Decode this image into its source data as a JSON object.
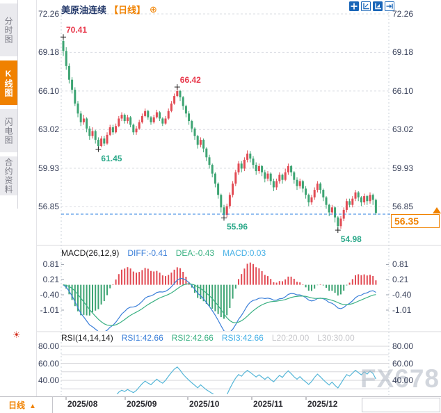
{
  "header": {
    "title": "美原油连续",
    "period_tag": "【日线】",
    "plus_icon": "⊕"
  },
  "sidebar": {
    "tabs": [
      {
        "label": "分时图",
        "active": false
      },
      {
        "label": "K线图",
        "active": true
      },
      {
        "label": "闪电图",
        "active": false
      },
      {
        "label": "合约资料",
        "active": false
      }
    ]
  },
  "toolbar": {
    "icons": [
      "pan-crosshair",
      "axis-zoom",
      "axis-chart-active",
      "exit-arrow"
    ]
  },
  "colors": {
    "up": "#e24b54",
    "down": "#3da473",
    "accent_orange": "#f08200",
    "diff_blue": "#3b7fd9",
    "dea_green": "#3bb183",
    "macd_cyan": "#45b0e6",
    "rsi_cyan": "#55b6d8",
    "price_line_blue": "#2b7fe0"
  },
  "main_chart": {
    "axis_labels": [
      "72.26",
      "69.18",
      "66.10",
      "63.02",
      "59.93",
      "56.85"
    ],
    "annotations": [
      {
        "text": "70.41",
        "kind": "high",
        "candle_index": 0,
        "price": 70.41
      },
      {
        "text": "61.45",
        "kind": "low",
        "candle_index": 12,
        "price": 61.45
      },
      {
        "text": "66.42",
        "kind": "high",
        "candle_index": 39,
        "price": 66.42
      },
      {
        "text": "55.96",
        "kind": "low",
        "candle_index": 55,
        "price": 55.96
      },
      {
        "text": "54.98",
        "kind": "low",
        "candle_index": 94,
        "price": 54.98
      }
    ],
    "current_price": {
      "text": "56.35",
      "price": 56.35
    }
  },
  "macd_panel": {
    "title": "MACD(26,12,9)",
    "diff_label": "DIFF:-0.41",
    "dea_label": "DEA:-0.43",
    "macd_label": "MACD:0.03",
    "axis_labels": [
      "0.81",
      "0.21",
      "-0.40",
      "-1.01"
    ]
  },
  "rsi_panel": {
    "title": "RSI(14,14,14)",
    "rsi1_label": "RSI1:42.66",
    "rsi2_label": "RSI2:42.66",
    "rsi3_label": "RSI3:42.66",
    "l20_label": "L20:20.00",
    "l30_label": "L30:30.00",
    "axis_labels": [
      "80.00",
      "60.00",
      "40.00"
    ],
    "icon_glyph": "☀"
  },
  "timeline": {
    "labels": [
      "2025/08",
      "2025/09",
      "2025/10",
      "2025/11",
      "2025/12"
    ]
  },
  "footer": {
    "period_label": "日线",
    "arrow": "▲"
  },
  "watermark": "FX678",
  "chart_data": {
    "type": "candlestick",
    "symbol": "美原油连续",
    "period": "日线",
    "price_axis_ticks": [
      72.26,
      69.18,
      66.1,
      63.02,
      59.93,
      56.85
    ],
    "x_months": [
      "2025/08",
      "2025/09",
      "2025/10",
      "2025/11",
      "2025/12"
    ],
    "annotated_points": {
      "period_high": 70.41,
      "aug_low": 61.45,
      "oct_high": 66.42,
      "oct_low": 55.96,
      "dec_low": 54.98,
      "last_close": 56.35
    },
    "indicators": {
      "macd": {
        "params": [
          26,
          12,
          9
        ],
        "diff": -0.41,
        "dea": -0.43,
        "macd": 0.03,
        "axis_ticks": [
          0.81,
          0.21,
          -0.4,
          -1.01
        ]
      },
      "rsi": {
        "params": [
          14,
          14,
          14
        ],
        "rsi1": 42.66,
        "rsi2": 42.66,
        "rsi3": 42.66,
        "l20": 20.0,
        "l30": 30.0,
        "axis_ticks": [
          80,
          60,
          40
        ]
      }
    },
    "candles_ohlc": [
      [
        70.1,
        70.41,
        68.9,
        69.3
      ],
      [
        69.3,
        69.6,
        67.8,
        68.1
      ],
      [
        68.1,
        68.3,
        66.7,
        67.0
      ],
      [
        67.0,
        67.2,
        65.9,
        66.2
      ],
      [
        66.2,
        66.4,
        64.9,
        65.1
      ],
      [
        65.1,
        65.3,
        64.0,
        64.3
      ],
      [
        64.3,
        64.5,
        63.3,
        63.6
      ],
      [
        63.6,
        64.2,
        63.4,
        63.9
      ],
      [
        63.9,
        64.0,
        62.8,
        63.1
      ],
      [
        63.1,
        63.3,
        62.2,
        62.5
      ],
      [
        62.5,
        63.2,
        62.3,
        62.9
      ],
      [
        62.9,
        63.0,
        61.9,
        62.2
      ],
      [
        62.2,
        62.4,
        61.45,
        61.7
      ],
      [
        61.7,
        62.5,
        61.6,
        62.3
      ],
      [
        62.3,
        62.5,
        61.7,
        61.9
      ],
      [
        61.9,
        62.8,
        61.8,
        62.6
      ],
      [
        62.6,
        63.4,
        62.5,
        63.2
      ],
      [
        63.2,
        63.4,
        62.6,
        62.8
      ],
      [
        62.8,
        63.5,
        62.7,
        63.3
      ],
      [
        63.3,
        64.1,
        63.2,
        63.9
      ],
      [
        63.9,
        64.4,
        63.7,
        64.2
      ],
      [
        64.2,
        64.3,
        63.5,
        63.7
      ],
      [
        63.7,
        64.2,
        63.5,
        64.0
      ],
      [
        64.0,
        64.1,
        63.2,
        63.4
      ],
      [
        63.4,
        63.5,
        62.6,
        62.8
      ],
      [
        62.8,
        63.3,
        62.6,
        63.1
      ],
      [
        63.1,
        63.8,
        63.0,
        63.6
      ],
      [
        63.6,
        64.3,
        63.5,
        64.1
      ],
      [
        64.1,
        64.7,
        64.0,
        64.5
      ],
      [
        64.5,
        64.6,
        63.8,
        64.0
      ],
      [
        64.0,
        64.1,
        63.4,
        63.6
      ],
      [
        63.6,
        64.2,
        63.5,
        64.0
      ],
      [
        64.0,
        64.6,
        63.9,
        64.4
      ],
      [
        64.4,
        64.5,
        63.7,
        63.9
      ],
      [
        63.9,
        64.0,
        63.3,
        63.5
      ],
      [
        63.5,
        64.1,
        63.4,
        63.9
      ],
      [
        63.9,
        64.7,
        63.8,
        64.5
      ],
      [
        64.5,
        65.3,
        64.4,
        65.1
      ],
      [
        65.1,
        65.9,
        65.0,
        65.7
      ],
      [
        65.7,
        66.42,
        65.6,
        66.1
      ],
      [
        66.1,
        66.2,
        65.3,
        65.6
      ],
      [
        65.6,
        65.7,
        64.6,
        64.9
      ],
      [
        64.9,
        65.0,
        64.0,
        64.3
      ],
      [
        64.3,
        64.5,
        63.4,
        63.7
      ],
      [
        63.7,
        63.8,
        62.8,
        63.1
      ],
      [
        63.1,
        63.2,
        62.2,
        62.5
      ],
      [
        62.5,
        62.6,
        61.5,
        61.8
      ],
      [
        61.8,
        62.4,
        61.6,
        62.2
      ],
      [
        62.2,
        62.3,
        61.2,
        61.5
      ],
      [
        61.5,
        61.6,
        60.5,
        60.8
      ],
      [
        60.8,
        61.0,
        59.9,
        60.2
      ],
      [
        60.2,
        60.3,
        59.2,
        59.5
      ],
      [
        59.5,
        59.6,
        58.4,
        58.7
      ],
      [
        58.7,
        58.8,
        57.5,
        57.8
      ],
      [
        57.8,
        57.9,
        56.4,
        56.8
      ],
      [
        56.8,
        57.0,
        55.96,
        56.2
      ],
      [
        56.2,
        57.1,
        56.0,
        56.9
      ],
      [
        56.9,
        58.0,
        56.7,
        57.8
      ],
      [
        57.8,
        58.9,
        57.6,
        58.7
      ],
      [
        58.7,
        59.8,
        58.5,
        59.6
      ],
      [
        59.6,
        60.5,
        59.4,
        60.3
      ],
      [
        60.3,
        60.5,
        59.6,
        59.9
      ],
      [
        59.9,
        60.8,
        59.7,
        60.6
      ],
      [
        60.6,
        61.35,
        60.4,
        61.1
      ],
      [
        61.1,
        61.3,
        60.4,
        60.7
      ],
      [
        60.7,
        60.9,
        59.9,
        60.2
      ],
      [
        60.2,
        60.4,
        59.4,
        59.7
      ],
      [
        59.7,
        60.3,
        59.5,
        60.1
      ],
      [
        60.1,
        60.2,
        59.3,
        59.6
      ],
      [
        59.6,
        59.8,
        58.8,
        59.1
      ],
      [
        59.1,
        59.7,
        58.9,
        59.5
      ],
      [
        59.5,
        59.6,
        58.6,
        58.9
      ],
      [
        58.9,
        59.1,
        58.1,
        58.4
      ],
      [
        58.4,
        59.1,
        58.2,
        58.9
      ],
      [
        58.9,
        59.6,
        58.7,
        59.4
      ],
      [
        59.4,
        59.5,
        58.7,
        59.0
      ],
      [
        59.0,
        59.9,
        58.9,
        59.6
      ],
      [
        59.6,
        60.3,
        59.4,
        60.1
      ],
      [
        60.1,
        60.2,
        59.3,
        59.6
      ],
      [
        59.6,
        59.7,
        58.7,
        59.0
      ],
      [
        59.0,
        59.2,
        58.2,
        58.5
      ],
      [
        58.5,
        59.1,
        58.3,
        58.9
      ],
      [
        58.9,
        59.0,
        58.0,
        58.3
      ],
      [
        58.3,
        58.5,
        57.5,
        57.8
      ],
      [
        57.8,
        57.9,
        56.9,
        57.2
      ],
      [
        57.2,
        57.8,
        57.0,
        57.6
      ],
      [
        57.6,
        58.4,
        57.4,
        58.2
      ],
      [
        58.2,
        58.9,
        58.0,
        58.7
      ],
      [
        58.7,
        58.8,
        57.9,
        58.2
      ],
      [
        58.2,
        58.3,
        57.3,
        57.6
      ],
      [
        57.6,
        57.7,
        56.7,
        57.0
      ],
      [
        57.0,
        57.1,
        56.1,
        56.4
      ],
      [
        56.4,
        57.0,
        56.2,
        56.8
      ],
      [
        56.8,
        56.9,
        55.6,
        56.0
      ],
      [
        56.0,
        56.1,
        54.98,
        55.3
      ],
      [
        55.3,
        56.1,
        55.1,
        55.9
      ],
      [
        55.9,
        56.8,
        55.7,
        56.6
      ],
      [
        56.6,
        57.5,
        56.4,
        57.3
      ],
      [
        57.3,
        57.5,
        56.8,
        57.0
      ],
      [
        57.0,
        57.7,
        56.8,
        57.5
      ],
      [
        57.5,
        58.2,
        57.3,
        58.0
      ],
      [
        58.0,
        58.1,
        57.3,
        57.6
      ],
      [
        57.6,
        57.7,
        56.9,
        57.2
      ],
      [
        57.2,
        57.9,
        57.0,
        57.7
      ],
      [
        57.7,
        57.8,
        57.0,
        57.3
      ],
      [
        57.3,
        58.0,
        57.1,
        57.8
      ],
      [
        57.8,
        57.9,
        57.0,
        57.4
      ],
      [
        57.4,
        57.5,
        56.2,
        56.35
      ]
    ]
  }
}
